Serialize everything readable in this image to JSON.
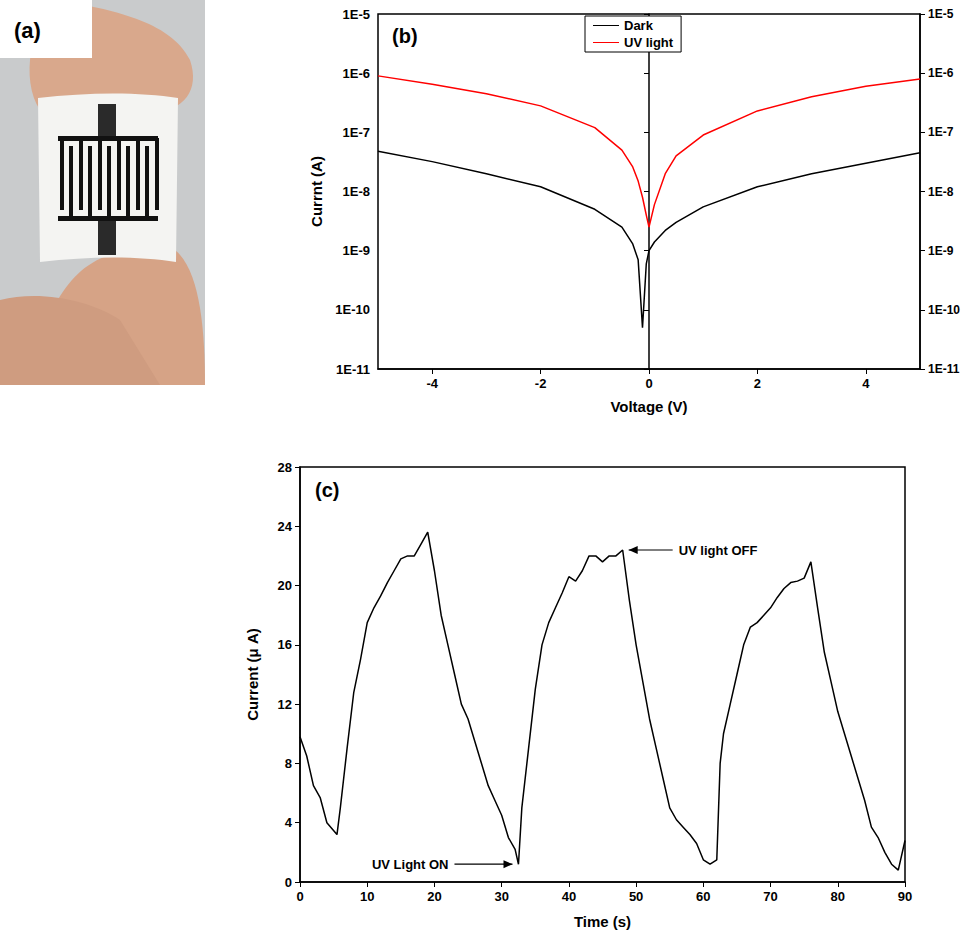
{
  "photo": {
    "panel": "(a)"
  },
  "chart_data": [
    {
      "type": "line",
      "panel": "(b)",
      "x_label": "Voltage (V)",
      "y_label": "Currnt (A)",
      "log": "y",
      "grid": false,
      "legend": "top",
      "xlim": [
        -5,
        5
      ],
      "xticks": [
        -4,
        -2,
        0,
        2,
        4
      ],
      "ylim": [
        1e-11,
        1e-05
      ],
      "yticks": [
        {
          "value": 1e-11,
          "label": "1E-11"
        },
        {
          "value": 1e-10,
          "label": "1E-10"
        },
        {
          "value": 1e-09,
          "label": "1E-9"
        },
        {
          "value": 1e-08,
          "label": "1E-8"
        },
        {
          "value": 1e-07,
          "label": "1E-7"
        },
        {
          "value": 1e-06,
          "label": "1E-6"
        },
        {
          "value": 1e-05,
          "label": "1E-5"
        }
      ],
      "y2lim": [
        1e-11,
        1e-05
      ],
      "y2ticks": [
        {
          "value": 1e-11,
          "label": "1E-11"
        },
        {
          "value": 1e-10,
          "label": "1E-10"
        },
        {
          "value": 1e-09,
          "label": "1E-9"
        },
        {
          "value": 1e-08,
          "label": "1E-8"
        },
        {
          "value": 1e-07,
          "label": "1E-7"
        },
        {
          "value": 1e-06,
          "label": "1E-6"
        },
        {
          "value": 1e-05,
          "label": "1E-5"
        }
      ],
      "x": [
        -5,
        -4,
        -3,
        -2,
        -1,
        -0.5,
        -0.3,
        -0.2,
        -0.12,
        -0.05,
        0,
        0.1,
        0.3,
        0.5,
        1,
        2,
        3,
        4,
        5
      ],
      "series": [
        {
          "name": "Dark",
          "color": "#000000",
          "values": [
            4.8e-08,
            3.2e-08,
            2e-08,
            1.2e-08,
            5e-09,
            2.5e-09,
            1.3e-09,
            7e-10,
            5e-11,
            6e-10,
            1e-09,
            1.4e-09,
            2.2e-09,
            3e-09,
            5.5e-09,
            1.2e-08,
            2e-08,
            3e-08,
            4.5e-08
          ]
        },
        {
          "name": "UV light",
          "color": "#ff0000",
          "values": [
            9e-07,
            6.5e-07,
            4.5e-07,
            2.8e-07,
            1.2e-07,
            5e-08,
            2.6e-08,
            1.5e-08,
            8e-09,
            4e-09,
            2.5e-09,
            6e-09,
            2e-08,
            4e-08,
            9e-08,
            2.3e-07,
            4e-07,
            6e-07,
            8e-07
          ]
        }
      ]
    },
    {
      "type": "line",
      "panel": "(c)",
      "x_label": "Time (s)",
      "y_label": "Current (μ A)",
      "grid": false,
      "color": "#000000",
      "xlim": [
        0,
        90
      ],
      "xticks": [
        0,
        10,
        20,
        30,
        40,
        50,
        60,
        70,
        80,
        90
      ],
      "ylim": [
        0,
        28
      ],
      "yticks": [
        0,
        4,
        8,
        12,
        16,
        20,
        24,
        28
      ],
      "x": [
        0,
        1,
        2,
        3,
        4,
        5.5,
        6,
        7,
        8,
        9,
        10,
        11,
        12,
        13,
        14,
        15,
        16,
        17,
        18,
        19,
        20,
        21,
        22,
        23,
        24,
        25,
        26,
        27,
        28,
        29,
        30,
        31,
        32,
        32.5,
        33,
        34,
        35,
        36,
        37,
        38,
        39,
        40,
        41,
        42,
        43,
        44,
        45,
        46,
        47,
        48,
        49,
        50,
        51,
        52,
        53,
        54,
        55,
        56,
        57,
        58,
        59,
        60,
        61,
        62,
        62.5,
        63,
        64,
        65,
        66,
        67,
        68,
        69,
        70,
        71,
        72,
        73,
        74,
        75,
        76,
        77,
        78,
        79,
        80,
        81,
        82,
        83,
        84,
        85,
        86,
        87,
        88,
        89,
        90
      ],
      "values": [
        9.8,
        8.5,
        6.5,
        5.7,
        4.0,
        3.2,
        5,
        9,
        12.8,
        15,
        17.5,
        18.5,
        19.3,
        20.2,
        21,
        21.8,
        22,
        22,
        22.8,
        23.6,
        21,
        18,
        16,
        14,
        12,
        11,
        9.5,
        8,
        6.5,
        5.5,
        4.5,
        3,
        2.2,
        1.2,
        5,
        9,
        13,
        16,
        17.5,
        18.5,
        19.5,
        20.6,
        20.3,
        21,
        22,
        22,
        21.6,
        22,
        22,
        22.4,
        19,
        16,
        13.5,
        11,
        9,
        7,
        5,
        4.2,
        3.7,
        3.2,
        2.6,
        1.5,
        1.2,
        1.5,
        8,
        10,
        12,
        14,
        16,
        17.2,
        17.5,
        18,
        18.5,
        19.2,
        19.8,
        20.2,
        20.3,
        20.5,
        21.6,
        18.5,
        15.5,
        13.5,
        11.5,
        10,
        8.5,
        7,
        5.5,
        3.7,
        3,
        2,
        1.2,
        0.8,
        2.8
      ],
      "annotations": [
        {
          "text": "UV light OFF",
          "x": 48,
          "y": 22.4
        },
        {
          "text": "UV Light ON",
          "x": 32.5,
          "y": 1.2
        }
      ]
    }
  ]
}
